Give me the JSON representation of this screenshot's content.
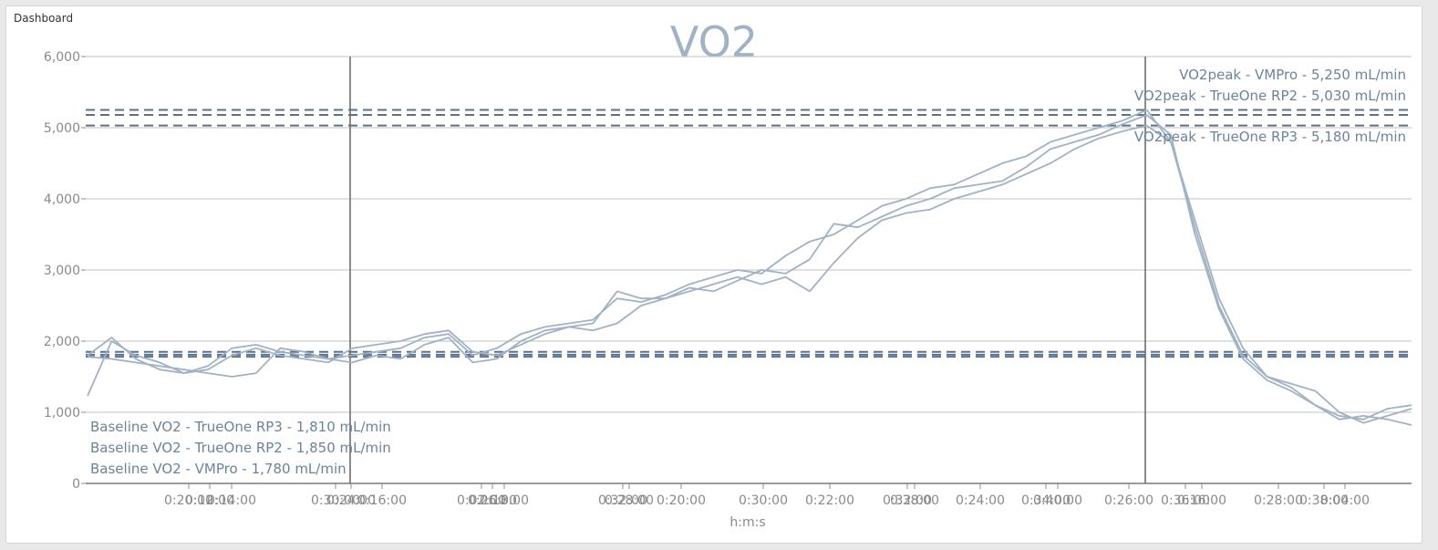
{
  "panel": {
    "title": "Dashboard"
  },
  "chart_data": {
    "type": "line",
    "title": "VO2",
    "xlabel": "h:m:s",
    "ylabel": "",
    "ylim": [
      0,
      6000
    ],
    "yticks": [
      "0",
      "1,000",
      "2,000",
      "3,000",
      "4,000",
      "5,000",
      "6,000"
    ],
    "xtick_labels_overlapping": [
      "0:20:00",
      "0:12:00",
      "0:14:00",
      "0:30:00",
      "0:24:00",
      "0:16:00",
      "0:02:00",
      "0:26:00",
      "0:18:00",
      "0:32:00",
      "0:28:00",
      "0:20:00",
      "0:30:00",
      "0:22:00",
      "0:32:00",
      "0:38:00",
      "0:24:00",
      "0:34:00",
      "0:40:00",
      "0:26:00",
      "0:36:00",
      "0:16:00",
      "0:28:00",
      "0:38:00",
      "0:04:00"
    ],
    "grid": true,
    "line_color": "#a1b2c4",
    "reference_color": "#5a738c",
    "vertical_markers": [
      "baseline-end",
      "peak"
    ],
    "series": [
      {
        "name": "VMPro",
        "values": [
          1800,
          2050,
          1750,
          1600,
          1550,
          1650,
          1900,
          1950,
          1850,
          1800,
          1750,
          1800,
          1850,
          1900,
          2050,
          2100,
          1800,
          1900,
          2100,
          2200,
          2250,
          2300,
          2600,
          2550,
          2650,
          2800,
          2900,
          3000,
          2950,
          3200,
          3400,
          3500,
          3700,
          3900,
          4000,
          4150,
          4200,
          4350,
          4500,
          4600,
          4800,
          4900,
          5000,
          5100,
          5250,
          4800,
          3600,
          2500,
          1800,
          1500,
          1350,
          1100,
          950,
          900,
          1050,
          1100
        ]
      },
      {
        "name": "TrueOne RP2",
        "values": [
          1780,
          1750,
          1700,
          1650,
          1600,
          1550,
          1500,
          1550,
          1900,
          1850,
          1750,
          1700,
          1800,
          1750,
          1950,
          2050,
          1700,
          1750,
          2000,
          2150,
          2200,
          2150,
          2250,
          2500,
          2600,
          2700,
          2800,
          2900,
          2800,
          2900,
          2700,
          3100,
          3450,
          3700,
          3800,
          3850,
          4000,
          4100,
          4200,
          4350,
          4500,
          4700,
          4850,
          4950,
          5030,
          4800,
          3700,
          2600,
          1900,
          1500,
          1400,
          1300,
          1000,
          850,
          950,
          1050
        ]
      },
      {
        "name": "TrueOne RP3",
        "values": [
          1230,
          2000,
          1800,
          1700,
          1550,
          1600,
          1800,
          1900,
          1800,
          1750,
          1700,
          1900,
          1950,
          2000,
          2100,
          2150,
          1850,
          1800,
          1950,
          2100,
          2200,
          2250,
          2700,
          2600,
          2600,
          2750,
          2700,
          2850,
          3000,
          2950,
          3150,
          3650,
          3600,
          3750,
          3900,
          4000,
          4150,
          4200,
          4250,
          4450,
          4700,
          4800,
          4900,
          5050,
          5180,
          4900,
          3500,
          2450,
          1750,
          1450,
          1300,
          1100,
          900,
          950,
          900,
          820
        ]
      }
    ],
    "reference_lines": [
      {
        "label": "VO2peak - VMPro - 5,250 mL/min",
        "value": 5250,
        "style": "dashed"
      },
      {
        "label": "VO2peak - TrueOne RP2 - 5,030 mL/min",
        "value": 5030,
        "style": "dashed"
      },
      {
        "label": "VO2peak - TrueOne RP3 - 5,180 mL/min",
        "value": 5180,
        "style": "dashed"
      },
      {
        "label": "Baseline VO2 - TrueOne RP3 - 1,810 mL/min",
        "value": 1810,
        "style": "dashed"
      },
      {
        "label": "Baseline VO2 - TrueOne RP2 - 1,850 mL/min",
        "value": 1850,
        "style": "dashed"
      },
      {
        "label": "Baseline VO2 - VMPro - 1,780 mL/min",
        "value": 1780,
        "style": "dashed"
      }
    ],
    "legend": "none"
  }
}
